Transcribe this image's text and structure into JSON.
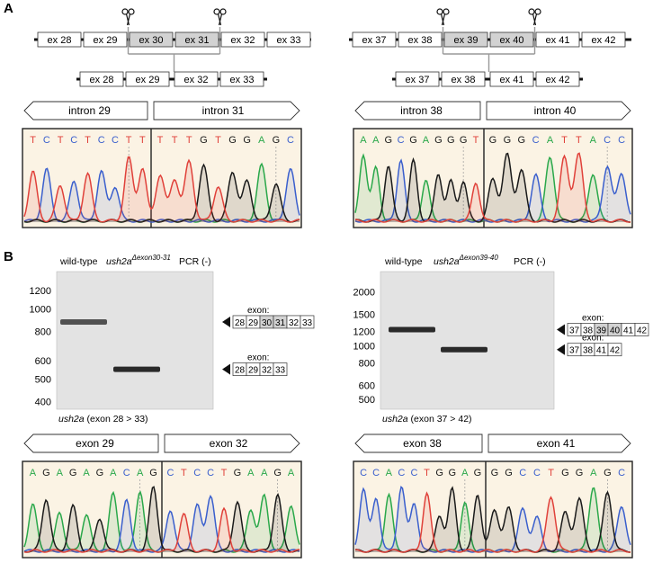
{
  "panels": {
    "a": "A",
    "b": "B"
  },
  "colors": {
    "A": "#2aa84a",
    "C": "#3a5fcd",
    "G": "#1a1a1a",
    "T": "#e0413a",
    "exon_box": "#ffffff",
    "exon_deleted": "#d2d2d2",
    "chromatogram_bg": "#fbf3e4",
    "gel_bg": "#e3e3e3",
    "band": "#202020"
  },
  "diagram_left": {
    "top_exons": [
      {
        "label": "ex 28",
        "deleted": false
      },
      {
        "label": "ex 29",
        "deleted": false
      },
      {
        "label": "ex 30",
        "deleted": true
      },
      {
        "label": "ex 31",
        "deleted": true
      },
      {
        "label": "ex 32",
        "deleted": false
      },
      {
        "label": "ex 33",
        "deleted": false
      }
    ],
    "bottom_exons": [
      "ex 28",
      "ex 29",
      "ex 32",
      "ex 33"
    ],
    "region_left": "intron 29",
    "region_right": "intron 31",
    "seq_left": "TCTCTCCTT",
    "seq_right": "TTTGTGGAGC"
  },
  "diagram_right": {
    "top_exons": [
      {
        "label": "ex 37",
        "deleted": false
      },
      {
        "label": "ex 38",
        "deleted": false
      },
      {
        "label": "ex 39",
        "deleted": true
      },
      {
        "label": "ex 40",
        "deleted": true
      },
      {
        "label": "ex 41",
        "deleted": false
      },
      {
        "label": "ex 42",
        "deleted": false
      }
    ],
    "bottom_exons": [
      "ex 37",
      "ex 38",
      "ex 41",
      "ex 42"
    ],
    "region_left": "intron 38",
    "region_right": "intron 40",
    "seq_left": "AAGCGAGGGT",
    "seq_right": "GGGCATTACC"
  },
  "gel_left": {
    "lane_wt": "wild-type",
    "lane_mut_gene": "ush2a",
    "lane_mut_allele": "Δexon30-31",
    "lane_neg": "PCR (-)",
    "caption_gene": "ush2a",
    "caption_rest": " (exon 28 > 33)",
    "markers": [
      1200,
      1000,
      800,
      600,
      500,
      400
    ],
    "bands": [
      {
        "lane": "wild-type",
        "size": 880
      },
      {
        "lane": "mutant",
        "size": 550
      }
    ],
    "products": [
      {
        "label": "exon:",
        "exons": [
          "28",
          "29",
          "30",
          "31",
          "32",
          "33"
        ],
        "deleted": [
          "30",
          "31"
        ]
      },
      {
        "label": "exon:",
        "exons": [
          "28",
          "29",
          "32",
          "33"
        ],
        "deleted": []
      }
    ]
  },
  "gel_right": {
    "lane_wt": "wild-type",
    "lane_mut_gene": "ush2a",
    "lane_mut_allele": "Δexon39-40",
    "lane_neg": "PCR (-)",
    "caption_gene": "ush2a",
    "caption_rest": " (exon 37 > 42)",
    "markers": [
      2000,
      1500,
      1200,
      1000,
      800,
      600,
      500
    ],
    "bands": [
      {
        "lane": "wild-type",
        "size": 1230
      },
      {
        "lane": "mutant",
        "size": 950
      }
    ],
    "products": [
      {
        "label": "exon:",
        "exons": [
          "37",
          "38",
          "39",
          "40",
          "41",
          "42"
        ],
        "deleted": [
          "39",
          "40"
        ]
      },
      {
        "label": "exon:",
        "exons": [
          "37",
          "38",
          "41",
          "42"
        ],
        "deleted": []
      }
    ]
  },
  "seq_bottom_left": {
    "region_left": "exon 29",
    "region_right": "exon 32",
    "seq_left": "AGAGAGACAG",
    "seq_right": "CTCCTGAAGA"
  },
  "seq_bottom_right": {
    "region_left": "exon 38",
    "region_right": "exon 41",
    "seq_left": "CCACCTGGAG",
    "seq_right": "GGCCTGGAGC"
  }
}
